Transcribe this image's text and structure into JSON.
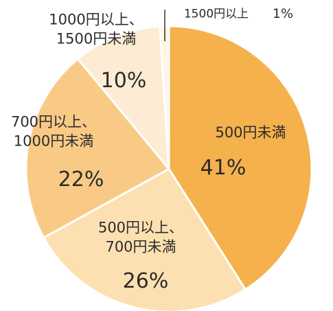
{
  "chart_data": {
    "type": "pie",
    "categories": [
      "500円未満",
      "500円以上、\n700円未満",
      "700円以上、\n1000円未満",
      "1000円以上、\n1500円未満",
      "1500円以上"
    ],
    "values": [
      41,
      26,
      22,
      10,
      1
    ],
    "value_labels": [
      "41%",
      "26%",
      "22%",
      "10%",
      "1%"
    ],
    "colors": [
      "#f5b14c",
      "#fde0b1",
      "#f8ca86",
      "#fdebd3",
      "#fff4e6"
    ]
  }
}
